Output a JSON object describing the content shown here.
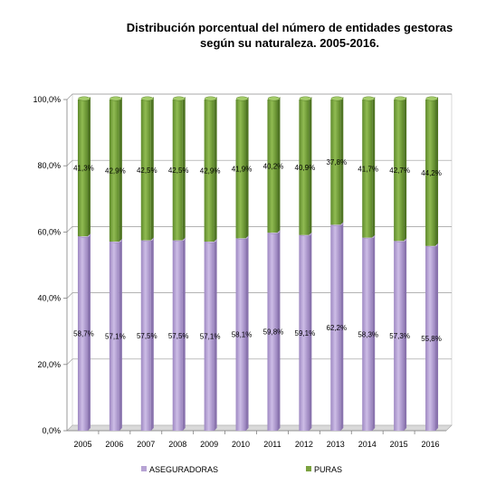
{
  "chart_data": {
    "type": "bar",
    "stacked": true,
    "title_line1": "Distribución porcentual del número de entidades gestoras",
    "title_line2": "según su naturaleza. 2005-2016.",
    "categories": [
      "2005",
      "2006",
      "2007",
      "2008",
      "2009",
      "2010",
      "2011",
      "2012",
      "2013",
      "2014",
      "2015",
      "2016"
    ],
    "series": [
      {
        "name": "ASEGURADORAS",
        "color": "#b7a3d4",
        "values": [
          58.7,
          57.1,
          57.5,
          57.5,
          57.1,
          58.1,
          59.8,
          59.1,
          62.2,
          58.3,
          57.3,
          55.8
        ],
        "labels": [
          "58,7%",
          "57,1%",
          "57,5%",
          "57,5%",
          "57,1%",
          "58,1%",
          "59,8%",
          "59,1%",
          "62,2%",
          "58,3%",
          "57,3%",
          "55,8%"
        ]
      },
      {
        "name": "PURAS",
        "color": "#7ba23f",
        "values": [
          41.3,
          42.9,
          42.5,
          42.5,
          42.9,
          41.9,
          40.2,
          40.9,
          37.8,
          41.7,
          42.7,
          44.2
        ],
        "labels": [
          "41,3%",
          "42,9%",
          "42,5%",
          "42,5%",
          "42,9%",
          "41,9%",
          "40,2%",
          "40,9%",
          "37,8%",
          "41,7%",
          "42,7%",
          "44,2%"
        ]
      }
    ],
    "ylim": [
      0,
      100
    ],
    "yticks": [
      "0,0%",
      "20,0%",
      "40,0%",
      "60,0%",
      "80,0%",
      "100,0%"
    ],
    "grid": true,
    "legend_position": "bottom"
  }
}
